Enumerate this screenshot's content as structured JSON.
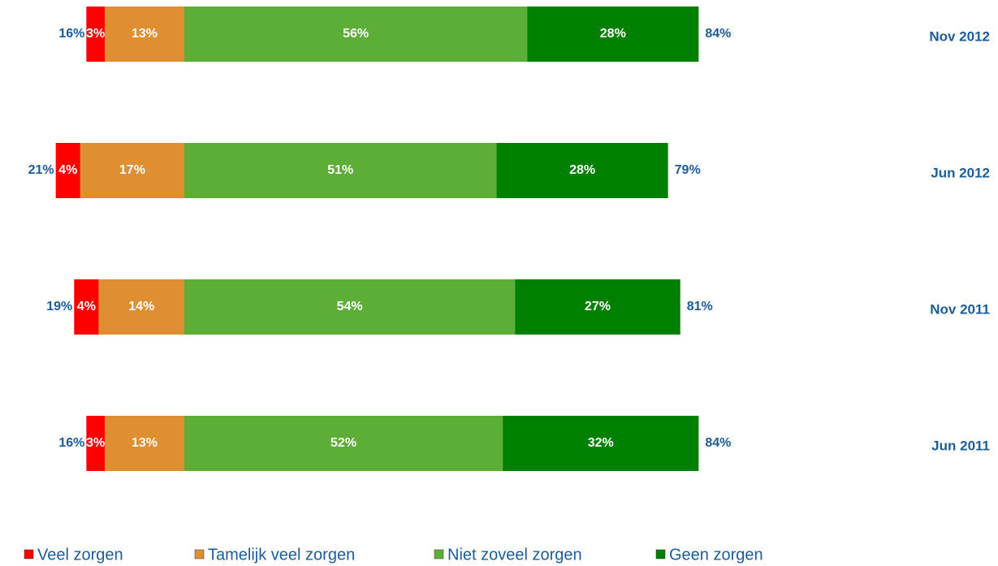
{
  "chart_data": {
    "type": "diverging-bar",
    "categories": [
      "Nov 2012",
      "Jun 2012",
      "Nov 2011",
      "Jun 2011"
    ],
    "series": [
      {
        "name": "Veel zorgen",
        "color": "#ff0000",
        "side": "negative",
        "values": [
          3,
          4,
          4,
          3
        ],
        "value_labels": [
          "3%",
          "4%",
          "4%",
          "3%"
        ]
      },
      {
        "name": "Tamelijk veel zorgen",
        "color": "#e08e32",
        "side": "negative",
        "values": [
          13,
          17,
          14,
          13
        ],
        "value_labels": [
          "13%",
          "17%",
          "14%",
          "13%"
        ]
      },
      {
        "name": "Niet zoveel zorgen",
        "color": "#5dae36",
        "side": "positive",
        "values": [
          56,
          51,
          54,
          52
        ],
        "value_labels": [
          "56%",
          "51%",
          "54%",
          "52%"
        ]
      },
      {
        "name": "Geen zorgen",
        "color": "#008000",
        "side": "positive",
        "values": [
          28,
          28,
          27,
          32
        ],
        "value_labels": [
          "28%",
          "28%",
          "27%",
          "32%"
        ]
      }
    ],
    "negative_totals": [
      16,
      21,
      19,
      16
    ],
    "negative_total_labels": [
      "16%",
      "21%",
      "19%",
      "16%"
    ],
    "positive_totals": [
      84,
      79,
      81,
      84
    ],
    "positive_total_labels": [
      "84%",
      "79%",
      "81%",
      "84%"
    ],
    "legend": "bottom"
  }
}
